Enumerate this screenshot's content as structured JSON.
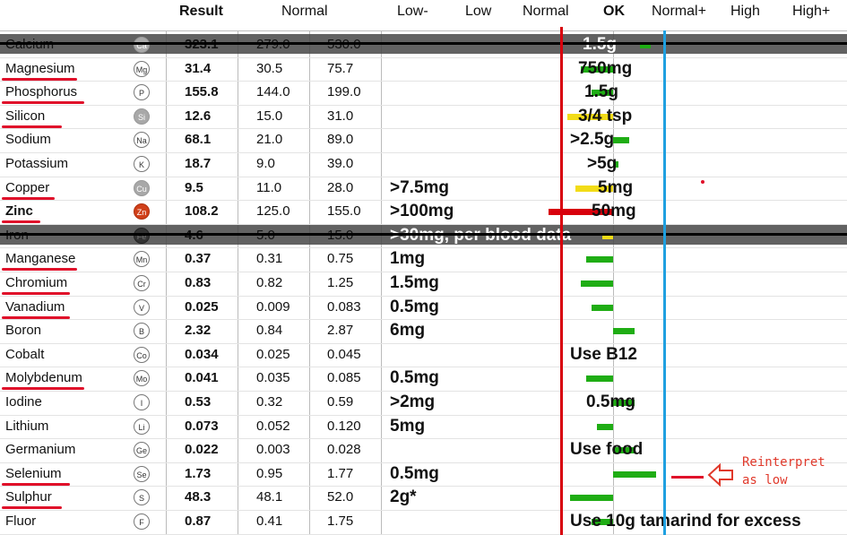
{
  "header": {
    "result": "Result",
    "normal": "Normal",
    "low_minus": "Low-",
    "low": "Low",
    "normal_zone": "Normal",
    "ok": "OK",
    "normal_plus": "Normal+",
    "high": "High",
    "high_plus": "High+"
  },
  "colors": {
    "green": "#1fad14",
    "yellow": "#f2dc18",
    "red": "#d8000c",
    "blue": "#1fa0e0",
    "band": "#464646",
    "underline": "#e0102a"
  },
  "rows": [
    {
      "name": "Calcium",
      "symbol": "Ca",
      "result": "323.1",
      "low": "279.0",
      "high": "530.0",
      "struck": true,
      "underlined": false,
      "bold": false,
      "annotation": "1.5g",
      "ann_white": true,
      "bar_color": "green",
      "bar_from": 0.5,
      "bar_to": 0.7
    },
    {
      "name": "Magnesium",
      "symbol": "Mg",
      "result": "31.4",
      "low": "30.5",
      "high": "75.7",
      "struck": false,
      "underlined": true,
      "bold": false,
      "annotation": "750mg",
      "ann_white": false,
      "bar_color": "green",
      "bar_from": -0.6,
      "bar_to": 0
    },
    {
      "name": "Phosphorus",
      "symbol": "P",
      "result": "155.8",
      "low": "144.0",
      "high": "199.0",
      "struck": false,
      "underlined": true,
      "bold": false,
      "annotation": "1.5g",
      "ann_white": false,
      "bar_color": "green",
      "bar_from": -0.4,
      "bar_to": 0
    },
    {
      "name": "Silicon",
      "symbol": "Si",
      "result": "12.6",
      "low": "15.0",
      "high": "31.0",
      "struck": false,
      "underlined": true,
      "bold": false,
      "annotation": "3/4 tsp",
      "ann_white": false,
      "bar_color": "yellow",
      "bar_from": -0.85,
      "bar_to": 0
    },
    {
      "name": "Sodium",
      "symbol": "Na",
      "result": "68.1",
      "low": "21.0",
      "high": "89.0",
      "struck": false,
      "underlined": false,
      "bold": false,
      "annotation": ">2.5g",
      "ann_white": false,
      "bar_color": "green",
      "bar_from": 0,
      "bar_to": 0.3
    },
    {
      "name": "Potassium",
      "symbol": "K",
      "result": "18.7",
      "low": "9.0",
      "high": "39.0",
      "struck": false,
      "underlined": false,
      "bold": false,
      "annotation": ">5g",
      "ann_white": false,
      "bar_color": "green",
      "bar_from": 0,
      "bar_to": 0.1
    },
    {
      "name": "Copper",
      "symbol": "Cu",
      "result": "9.5",
      "low": "11.0",
      "high": "28.0",
      "struck": false,
      "underlined": true,
      "bold": false,
      "annotation": ">7.5mg",
      "ann_white": false,
      "annotation2": "5mg",
      "bar_color": "yellow",
      "bar_from": -0.7,
      "bar_to": 0
    },
    {
      "name": "Zinc",
      "symbol": "Zn",
      "result": "108.2",
      "low": "125.0",
      "high": "155.0",
      "struck": false,
      "underlined": true,
      "bold": true,
      "annotation": ">100mg",
      "ann_white": false,
      "annotation2": "50mg",
      "bar_color": "red",
      "bar_from": -1.2,
      "bar_to": 0
    },
    {
      "name": "Iron",
      "symbol": "Fe",
      "result": "4.6",
      "low": "5.0",
      "high": "15.0",
      "struck": true,
      "underlined": false,
      "bold": false,
      "annotation": ">30mg, per blood data",
      "ann_white": true,
      "bar_color": "yellow",
      "bar_from": -0.2,
      "bar_to": 0
    },
    {
      "name": "Manganese",
      "symbol": "Mn",
      "result": "0.37",
      "low": "0.31",
      "high": "0.75",
      "struck": false,
      "underlined": true,
      "bold": false,
      "annotation": "1mg",
      "ann_white": false,
      "bar_color": "green",
      "bar_from": -0.5,
      "bar_to": 0
    },
    {
      "name": "Chromium",
      "symbol": "Cr",
      "result": "0.83",
      "low": "0.82",
      "high": "1.25",
      "struck": false,
      "underlined": true,
      "bold": false,
      "annotation": "1.5mg",
      "ann_white": false,
      "bar_color": "green",
      "bar_from": -0.6,
      "bar_to": 0
    },
    {
      "name": "Vanadium",
      "symbol": "V",
      "result": "0.025",
      "low": "0.009",
      "high": "0.083",
      "struck": false,
      "underlined": true,
      "bold": false,
      "annotation": "0.5mg",
      "ann_white": false,
      "bar_color": "green",
      "bar_from": -0.4,
      "bar_to": 0
    },
    {
      "name": "Boron",
      "symbol": "B",
      "result": "2.32",
      "low": "0.84",
      "high": "2.87",
      "struck": false,
      "underlined": false,
      "bold": false,
      "annotation": "6mg",
      "ann_white": false,
      "bar_color": "green",
      "bar_from": 0,
      "bar_to": 0.4
    },
    {
      "name": "Cobalt",
      "symbol": "Co",
      "result": "0.034",
      "low": "0.025",
      "high": "0.045",
      "struck": false,
      "underlined": false,
      "bold": false,
      "annotation": "Use B12",
      "ann_white": false,
      "bar_color": "green",
      "bar_from": 0,
      "bar_to": 0
    },
    {
      "name": "Molybdenum",
      "symbol": "Mo",
      "result": "0.041",
      "low": "0.035",
      "high": "0.085",
      "struck": false,
      "underlined": true,
      "bold": false,
      "annotation": "0.5mg",
      "ann_white": false,
      "bar_color": "green",
      "bar_from": -0.5,
      "bar_to": 0
    },
    {
      "name": "Iodine",
      "symbol": "I",
      "result": "0.53",
      "low": "0.32",
      "high": "0.59",
      "struck": false,
      "underlined": false,
      "bold": false,
      "annotation": ">2mg",
      "ann_white": false,
      "annotation2": "0.5mg",
      "bar_color": "green",
      "bar_from": 0,
      "bar_to": 0.4
    },
    {
      "name": "Lithium",
      "symbol": "Li",
      "result": "0.073",
      "low": "0.052",
      "high": "0.120",
      "struck": false,
      "underlined": false,
      "bold": false,
      "annotation": "5mg",
      "ann_white": false,
      "bar_color": "green",
      "bar_from": -0.3,
      "bar_to": 0
    },
    {
      "name": "Germanium",
      "symbol": "Ge",
      "result": "0.022",
      "low": "0.003",
      "high": "0.028",
      "struck": false,
      "underlined": false,
      "bold": false,
      "annotation": "Use food",
      "ann_white": false,
      "bar_color": "green",
      "bar_from": 0,
      "bar_to": 0.4
    },
    {
      "name": "Selenium",
      "symbol": "Se",
      "result": "1.73",
      "low": "0.95",
      "high": "1.77",
      "struck": false,
      "underlined": true,
      "bold": false,
      "annotation": "0.5mg",
      "ann_white": false,
      "bar_color": "green",
      "bar_from": 0,
      "bar_to": 0.8
    },
    {
      "name": "Sulphur",
      "symbol": "S",
      "result": "48.3",
      "low": "48.1",
      "high": "52.0",
      "struck": false,
      "underlined": true,
      "bold": false,
      "annotation": "2g*",
      "ann_white": false,
      "bar_color": "green",
      "bar_from": -0.8,
      "bar_to": 0
    },
    {
      "name": "Fluor",
      "symbol": "F",
      "result": "0.87",
      "low": "0.41",
      "high": "1.75",
      "struck": false,
      "underlined": false,
      "bold": false,
      "annotation": "Use 10g tamarind for excess",
      "ann_white": false,
      "bar_color": "green",
      "bar_from": -0.4,
      "bar_to": 0
    }
  ],
  "callout": {
    "line1": "Reinterpret",
    "line2": "as low"
  },
  "chart_data": {
    "type": "bar",
    "title": "",
    "categories": [
      "Calcium",
      "Magnesium",
      "Phosphorus",
      "Silicon",
      "Sodium",
      "Potassium",
      "Copper",
      "Zinc",
      "Iron",
      "Manganese",
      "Chromium",
      "Vanadium",
      "Boron",
      "Cobalt",
      "Molybdenum",
      "Iodine",
      "Lithium",
      "Germanium",
      "Selenium",
      "Sulphur",
      "Fluor"
    ],
    "scale_labels": [
      "Low-",
      "Low",
      "Normal",
      "OK",
      "Normal+",
      "High",
      "High+"
    ],
    "bar_start_zone": [
      0.5,
      -0.6,
      -0.4,
      -0.85,
      0,
      0,
      -0.7,
      -1.2,
      -0.2,
      -0.5,
      -0.6,
      -0.4,
      0,
      0,
      -0.5,
      0,
      -0.3,
      0,
      0,
      -0.8,
      -0.4
    ],
    "bar_end_zone": [
      0.7,
      0,
      0,
      0,
      0.3,
      0.1,
      0,
      0,
      0,
      0,
      0,
      0,
      0.4,
      0,
      0,
      0.4,
      0,
      0.4,
      0.8,
      0,
      0
    ],
    "unit": "zones from OK",
    "grid": true,
    "legend": "none"
  }
}
